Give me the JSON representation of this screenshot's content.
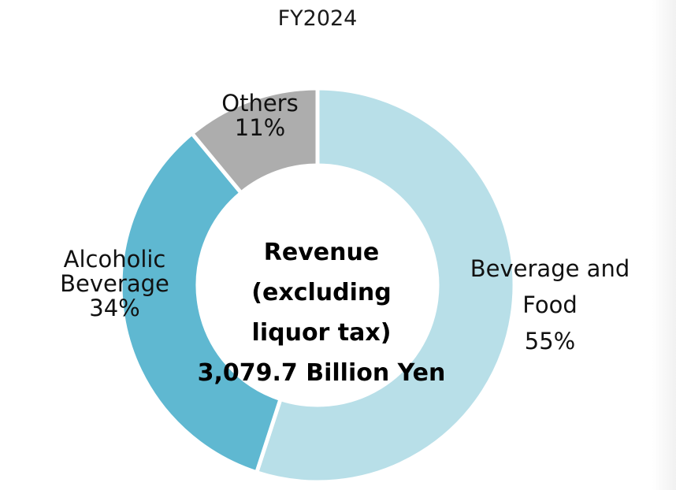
{
  "title": "FY2024",
  "center": {
    "line1": "Revenue (excluding",
    "line2": "liquor tax)",
    "line3": "3,079.7 Billion Yen"
  },
  "segments": [
    {
      "name": "Beverage and Food",
      "line1": "Beverage and",
      "line2": "Food",
      "pct_label": "55%",
      "value": 55,
      "color": "#b8dfe8"
    },
    {
      "name": "Alcoholic Beverage",
      "line1": "Alcoholic",
      "line2": "Beverage",
      "pct_label": "34%",
      "value": 34,
      "color": "#5fb8d1"
    },
    {
      "name": "Others",
      "line1": "Others",
      "pct_label": "11%",
      "value": 11,
      "color": "#adadad"
    }
  ],
  "chart_data": {
    "type": "pie",
    "subtype": "donut",
    "title": "FY2024",
    "center_text": "Revenue (excluding liquor tax) 3,079.7 Billion Yen",
    "total": 3079.7,
    "total_unit": "Billion Yen",
    "categories": [
      "Beverage and Food",
      "Alcoholic Beverage",
      "Others"
    ],
    "values": [
      55,
      34,
      11
    ],
    "unit": "%",
    "colors": [
      "#b8dfe8",
      "#5fb8d1",
      "#adadad"
    ],
    "start_angle": "12 o'clock",
    "direction": "clockwise",
    "legend": "none (direct labels)"
  }
}
